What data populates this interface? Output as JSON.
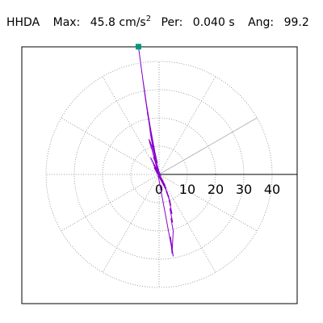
{
  "header": {
    "station": "HHDA",
    "max_label": "Max:",
    "max_value": "45.8 cm/s",
    "max_exp": "2",
    "per_label": "Per:",
    "per_value": "0.040 s",
    "ang_label": "Ang:",
    "ang_value": "99.2"
  },
  "chart_data": {
    "type": "polar-particle-motion",
    "radial_ticks": [
      0,
      10,
      20,
      30,
      40
    ],
    "radial_tick_labels": [
      "0",
      "10",
      "20",
      "30",
      "40"
    ],
    "rmax": 40,
    "ring_count": 4,
    "spoke_angles_deg": [
      0,
      30,
      60,
      90,
      120,
      150,
      180,
      210,
      240,
      270,
      300,
      330
    ],
    "highlight_spoke_deg": 30,
    "peak_marker": {
      "x": -7.3,
      "y": 45.2
    },
    "trace_color": "#8800cc",
    "marker_color": "#009977",
    "grid_color": "#888888",
    "trace": [
      [
        0.0,
        0.0
      ],
      [
        -0.5,
        1.0
      ],
      [
        0.8,
        -1.5
      ],
      [
        -1.2,
        2.0
      ],
      [
        1.5,
        -2.5
      ],
      [
        -2.0,
        3.5
      ],
      [
        2.2,
        -4.0
      ],
      [
        -3.0,
        6.0
      ],
      [
        3.0,
        -6.5
      ],
      [
        -1.8,
        2.5
      ],
      [
        0.5,
        -1.0
      ],
      [
        -2.5,
        10.0
      ],
      [
        -3.5,
        12.0
      ],
      [
        -2.8,
        10.5
      ],
      [
        -3.4,
        11.5
      ],
      [
        -2.6,
        9.0
      ],
      [
        -3.6,
        12.5
      ],
      [
        -2.9,
        11.0
      ],
      [
        -3.3,
        11.8
      ],
      [
        -1.0,
        3.0
      ],
      [
        1.2,
        -3.0
      ],
      [
        2.0,
        -4.5
      ],
      [
        3.5,
        -8.0
      ],
      [
        2.5,
        -6.0
      ],
      [
        4.0,
        -10.0
      ],
      [
        3.2,
        -7.5
      ],
      [
        4.2,
        -11.0
      ],
      [
        3.5,
        -9.0
      ],
      [
        4.6,
        -14.0
      ],
      [
        3.8,
        -12.0
      ],
      [
        4.8,
        -17.0
      ],
      [
        4.2,
        -15.5
      ],
      [
        5.0,
        -20.0
      ],
      [
        4.6,
        -28.0
      ],
      [
        4.0,
        -22.0
      ],
      [
        5.0,
        -29.0
      ],
      [
        -0.5,
        0.5
      ],
      [
        -3.0,
        14.0
      ],
      [
        -3.5,
        18.0
      ],
      [
        -3.0,
        16.0
      ],
      [
        -3.8,
        20.0
      ],
      [
        -4.2,
        22.0
      ],
      [
        -3.6,
        19.5
      ],
      [
        -2.8,
        15.0
      ],
      [
        -1.5,
        8.0
      ],
      [
        -0.6,
        4.0
      ],
      [
        -1.0,
        5.0
      ],
      [
        -2.0,
        6.0
      ],
      [
        0.0,
        1.0
      ],
      [
        0.5,
        -0.5
      ],
      [
        -0.5,
        0.8
      ],
      [
        -4.5,
        25.0
      ],
      [
        -5.2,
        30.0
      ],
      [
        -5.8,
        34.0
      ],
      [
        -6.2,
        37.0
      ],
      [
        -6.6,
        40.0
      ],
      [
        -7.0,
        43.0
      ],
      [
        -7.3,
        45.2
      ],
      [
        -6.8,
        41.5
      ],
      [
        -5.0,
        28.0
      ],
      [
        -3.0,
        14.5
      ],
      [
        -0.8,
        3.0
      ],
      [
        1.0,
        -2.0
      ],
      [
        2.5,
        -5.0
      ],
      [
        1.5,
        -3.5
      ],
      [
        -0.5,
        1.5
      ],
      [
        0.3,
        -0.3
      ]
    ]
  }
}
